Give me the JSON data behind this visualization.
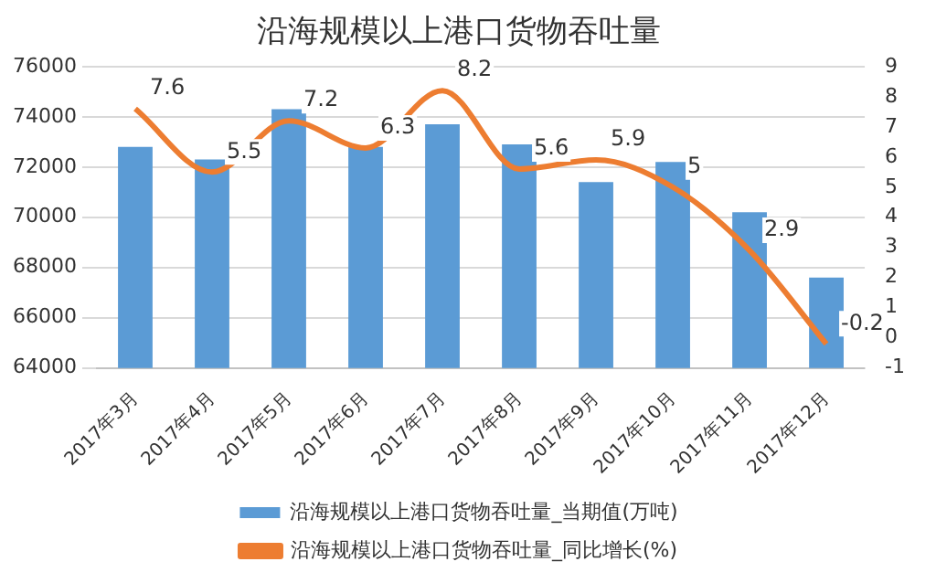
{
  "chart_data": {
    "type": "bar",
    "title": "沿海规模以上港口货物吞吐量",
    "categories": [
      "2017年3月",
      "2017年4月",
      "2017年5月",
      "2017年6月",
      "2017年7月",
      "2017年8月",
      "2017年9月",
      "2017年10月",
      "2017年11月",
      "2017年12月"
    ],
    "series": [
      {
        "name": "沿海规模以上港口货物吞吐量_当期值(万吨)",
        "color": "#5b9bd5",
        "values": [
          72800,
          72300,
          74300,
          72800,
          73700,
          72900,
          71400,
          72200,
          70200,
          67600
        ]
      },
      {
        "name": "沿海规模以上港口货物吞吐量_同比增长(%)",
        "type": "line",
        "axis": "y2",
        "color": "#ed7d31",
        "values": [
          7.6,
          5.5,
          7.2,
          6.3,
          8.2,
          5.6,
          5.9,
          5,
          2.9,
          -0.2
        ],
        "value_labels": [
          "7.6",
          "5.5",
          "7.2",
          "6.3",
          "8.2",
          "5.6",
          "5.9",
          "5",
          "2.9",
          "-0.2"
        ]
      }
    ],
    "ylim": [
      64000,
      76000
    ],
    "yticks": [
      64000,
      66000,
      68000,
      70000,
      72000,
      74000,
      76000
    ],
    "y2lim": [
      -1,
      9
    ],
    "y2ticks": [
      -1,
      0,
      1,
      2,
      3,
      4,
      5,
      6,
      7,
      8,
      9
    ],
    "grid": "y",
    "legend": "bottom",
    "marker": "none"
  }
}
